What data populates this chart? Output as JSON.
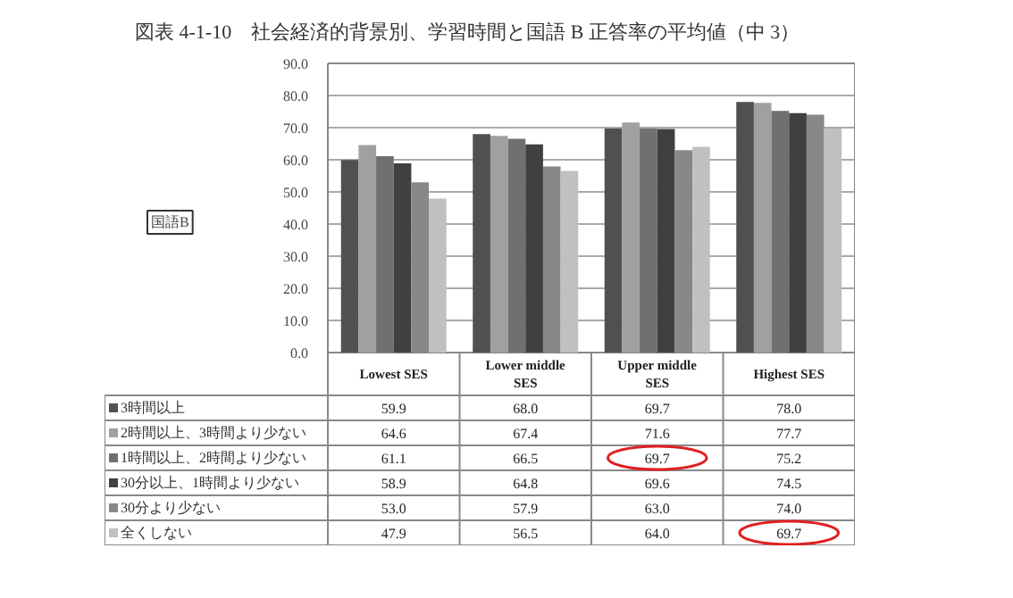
{
  "chart_data": {
    "type": "bar",
    "title": "図表 4-1-10　社会経済的背景別、学習時間と国語 B 正答率の平均値（中 3）",
    "annotations": [
      "国語B"
    ],
    "categories": [
      "Lowest SES",
      "Lower middle SES",
      "Upper middle SES",
      "Highest SES"
    ],
    "series": [
      {
        "name": "3時間以上",
        "color": "#505050",
        "values": [
          59.9,
          68.0,
          69.7,
          78.0
        ],
        "value_labels": [
          "59.9",
          "68.0",
          "69.7",
          "78.0"
        ]
      },
      {
        "name": "2時間以上、3時間より少ない",
        "color": "#a0a0a0",
        "values": [
          64.6,
          67.4,
          71.6,
          77.7
        ],
        "value_labels": [
          "64.6",
          "67.4",
          "71.6",
          "77.7"
        ]
      },
      {
        "name": "1時間以上、2時間より少ない",
        "color": "#707070",
        "values": [
          61.1,
          66.5,
          69.7,
          75.2
        ],
        "value_labels": [
          "61.1",
          "66.5",
          "69.7",
          "75.2"
        ]
      },
      {
        "name": "30分以上、1時間より少ない",
        "color": "#404040",
        "values": [
          58.9,
          64.8,
          69.6,
          74.5
        ],
        "value_labels": [
          "58.9",
          "64.8",
          "69.6",
          "74.5"
        ]
      },
      {
        "name": "30分より少ない",
        "color": "#888888",
        "values": [
          53.0,
          57.9,
          63.0,
          74.0
        ],
        "value_labels": [
          "53.0",
          "57.9",
          "63.0",
          "74.0"
        ]
      },
      {
        "name": "全くしない",
        "color": "#c0c0c0",
        "values": [
          47.9,
          56.5,
          64.0,
          69.7
        ],
        "value_labels": [
          "47.9",
          "56.5",
          "64.0",
          "69.7"
        ]
      }
    ],
    "ylim": [
      0,
      90
    ],
    "yticks": [
      {
        "value": 0,
        "label": "0.0"
      },
      {
        "value": 10,
        "label": "10.0"
      },
      {
        "value": 20,
        "label": "20.0"
      },
      {
        "value": 30,
        "label": "30.0"
      },
      {
        "value": 40,
        "label": "40.0"
      },
      {
        "value": 50,
        "label": "50.0"
      },
      {
        "value": 60,
        "label": "60.0"
      },
      {
        "value": 70,
        "label": "70.0"
      },
      {
        "value": 80,
        "label": "80.0"
      },
      {
        "value": 90,
        "label": "90.0"
      }
    ],
    "grid": "y",
    "legend": "bottom"
  }
}
